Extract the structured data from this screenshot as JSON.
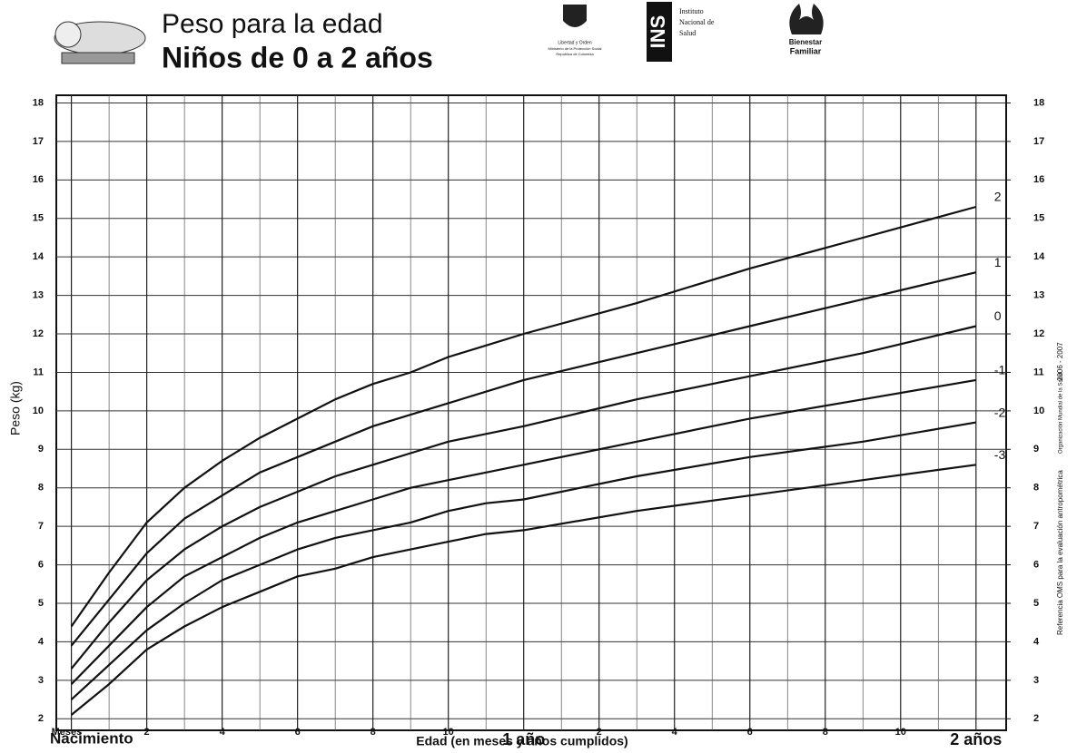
{
  "chart_data": {
    "type": "line",
    "title": "Peso para la edad",
    "subtitle": "Niños de 0 a 2 años",
    "logo_texts": [
      "Libertad y Orden",
      "Ministerio de la Protección Social",
      "República de Colombia",
      "INS",
      "Instituto",
      "Nacional de",
      "Salud",
      "Bienestar",
      "Familiar"
    ],
    "side_note": [
      "Referencia OMS para la evaluación antropométrica",
      "Organización Mundial de la Salud",
      "2006 - 2007"
    ],
    "y_label": "Peso (kg)",
    "x_label": "Edad (en meses y años cumplidos)",
    "x_origin_label": "Nacimiento",
    "x": [
      0,
      1,
      2,
      3,
      4,
      5,
      6,
      7,
      8,
      9,
      10,
      11,
      12,
      15,
      18,
      21,
      24
    ],
    "series": [
      {
        "name": "2",
        "color": "#111111",
        "values": [
          4.4,
          5.8,
          7.1,
          8.0,
          8.7,
          9.3,
          9.8,
          10.3,
          10.7,
          11.0,
          11.4,
          11.7,
          12.0,
          12.8,
          13.7,
          14.5,
          15.3
        ]
      },
      {
        "name": "1",
        "color": "#111111",
        "values": [
          3.9,
          5.1,
          6.3,
          7.2,
          7.8,
          8.4,
          8.8,
          9.2,
          9.6,
          9.9,
          10.2,
          10.5,
          10.8,
          11.5,
          12.2,
          12.9,
          13.6
        ]
      },
      {
        "name": "0",
        "color": "#111111",
        "values": [
          3.3,
          4.5,
          5.6,
          6.4,
          7.0,
          7.5,
          7.9,
          8.3,
          8.6,
          8.9,
          9.2,
          9.4,
          9.6,
          10.3,
          10.9,
          11.5,
          12.2
        ]
      },
      {
        "name": "-1",
        "color": "#111111",
        "values": [
          2.9,
          3.9,
          4.9,
          5.7,
          6.2,
          6.7,
          7.1,
          7.4,
          7.7,
          8.0,
          8.2,
          8.4,
          8.6,
          9.2,
          9.8,
          10.3,
          10.8
        ]
      },
      {
        "name": "-2",
        "color": "#111111",
        "values": [
          2.5,
          3.4,
          4.3,
          5.0,
          5.6,
          6.0,
          6.4,
          6.7,
          6.9,
          7.1,
          7.4,
          7.6,
          7.7,
          8.3,
          8.8,
          9.2,
          9.7
        ]
      },
      {
        "name": "-3",
        "color": "#111111",
        "values": [
          2.1,
          2.9,
          3.8,
          4.4,
          4.9,
          5.3,
          5.7,
          5.9,
          6.2,
          6.4,
          6.6,
          6.8,
          6.9,
          7.4,
          7.8,
          8.2,
          8.6
        ]
      }
    ],
    "xlim": [
      -0.4,
      24.8
    ],
    "ylim": [
      1.7,
      18.2
    ],
    "xticks": [
      {
        "value": 0,
        "label": "Meses"
      },
      2,
      4,
      6,
      8,
      10,
      {
        "value": 12,
        "label": "1 año"
      },
      {
        "value": 14,
        "label": "2"
      },
      {
        "value": 16,
        "label": "4"
      },
      {
        "value": 18,
        "label": "6"
      },
      {
        "value": 20,
        "label": "8"
      },
      {
        "value": 22,
        "label": "10"
      },
      {
        "value": 24,
        "label": "2 años"
      }
    ],
    "xminorticks": [
      1,
      3,
      5,
      7,
      9,
      11,
      13,
      15,
      17,
      19,
      21,
      23
    ],
    "yticks": [
      2,
      3,
      4,
      5,
      6,
      7,
      8,
      9,
      10,
      11,
      12,
      13,
      14,
      15,
      16,
      17,
      18
    ],
    "y2ticks": [
      2,
      3,
      4,
      5,
      6,
      7,
      8,
      9,
      10,
      11,
      12,
      13,
      14,
      15,
      16,
      17,
      18
    ],
    "grid": true
  }
}
